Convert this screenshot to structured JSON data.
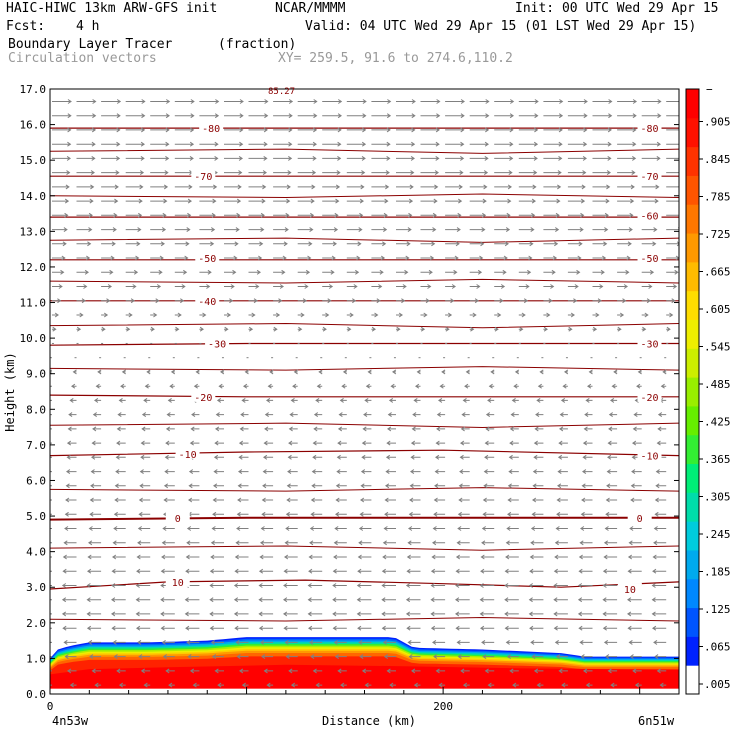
{
  "header": {
    "model": "HAIC-HIWC 13km ARW-GFS init",
    "org": "NCAR/MMMM",
    "init": "Init: 00 UTC Wed 29 Apr 15",
    "fcst_label": "Fcst:",
    "fcst_value": "4 h",
    "valid": "Valid: 04 UTC Wed 29 Apr 15 (01 LST Wed 29 Apr 15)",
    "field_name": "Boundary Layer Tracer",
    "field_units": "(fraction)",
    "vector_label": "Circulation vectors",
    "xy_label": "XY= 259.5, 91.6 to 274.6,110.2"
  },
  "chart_data": {
    "type": "heatmap",
    "ylabel": "Height (km)",
    "xlabel": "Distance (km)",
    "ylim": [
      0,
      17
    ],
    "xlim": [
      0,
      320
    ],
    "y_ticks": [
      "0.0",
      "1.0",
      "2.0",
      "3.0",
      "4.0",
      "5.0",
      "6.0",
      "7.0",
      "8.0",
      "9.0",
      "10.0",
      "11.0",
      "12.0",
      "13.0",
      "14.0",
      "15.0",
      "16.0",
      "17.0"
    ],
    "x_ticks": [
      {
        "value": 0,
        "label": "0"
      },
      {
        "value": 200,
        "label": "200"
      }
    ],
    "x_endpoint_left": "4n53w",
    "x_endpoint_right": "6n51w",
    "top_label": "85.27",
    "colorbar": {
      "top_label": "−",
      "labels": [
        ".005",
        ".065",
        ".125",
        ".185",
        ".245",
        ".305",
        ".365",
        ".425",
        ".485",
        ".545",
        ".605",
        ".665",
        ".725",
        ".785",
        ".845",
        ".905"
      ],
      "colors": [
        "#ffffff",
        "#0022ff",
        "#0055ff",
        "#0088ff",
        "#00aaee",
        "#00ccdd",
        "#00ddaa",
        "#00ee77",
        "#33ee33",
        "#66ee00",
        "#99ee00",
        "#ccee00",
        "#eeee00",
        "#ffdd00",
        "#ffbb00",
        "#ff9900",
        "#ff7700",
        "#ff5500",
        "#ff3300",
        "#ff1100",
        "#ff0000"
      ]
    },
    "tracer_top_km": [
      [
        0,
        1.0
      ],
      [
        4,
        1.25
      ],
      [
        10,
        1.35
      ],
      [
        20,
        1.45
      ],
      [
        50,
        1.45
      ],
      [
        80,
        1.5
      ],
      [
        100,
        1.6
      ],
      [
        140,
        1.6
      ],
      [
        175,
        1.6
      ],
      [
        185,
        1.3
      ],
      [
        220,
        1.25
      ],
      [
        260,
        1.15
      ],
      [
        272,
        1.05
      ],
      [
        320,
        1.05
      ]
    ],
    "red_top_km": [
      [
        0,
        0.55
      ],
      [
        20,
        0.7
      ],
      [
        60,
        0.75
      ],
      [
        120,
        0.82
      ],
      [
        180,
        0.78
      ],
      [
        240,
        0.72
      ],
      [
        320,
        0.68
      ]
    ],
    "temperature_contours": [
      {
        "label": "10",
        "labels_at": [
          [
            65,
            3.15
          ],
          [
            295,
            2.95
          ]
        ],
        "path": [
          [
            0,
            2.95
          ],
          [
            60,
            3.15
          ],
          [
            130,
            3.2
          ],
          [
            200,
            3.1
          ],
          [
            260,
            3.0
          ],
          [
            320,
            3.15
          ]
        ]
      },
      {
        "label": "0",
        "labels_at": [
          [
            65,
            4.95
          ],
          [
            300,
            4.95
          ]
        ],
        "path": [
          [
            0,
            4.9
          ],
          [
            100,
            4.95
          ],
          [
            200,
            4.95
          ],
          [
            320,
            4.95
          ]
        ]
      },
      {
        "label": "-10",
        "labels_at": [
          [
            70,
            6.75
          ],
          [
            305,
            6.7
          ]
        ],
        "path": [
          [
            0,
            6.7
          ],
          [
            100,
            6.8
          ],
          [
            200,
            6.85
          ],
          [
            320,
            6.7
          ]
        ]
      },
      {
        "label": "-20",
        "labels_at": [
          [
            78,
            8.35
          ],
          [
            305,
            8.35
          ]
        ],
        "path": [
          [
            0,
            8.4
          ],
          [
            100,
            8.35
          ],
          [
            200,
            8.35
          ],
          [
            320,
            8.35
          ]
        ]
      },
      {
        "label": "-30",
        "labels_at": [
          [
            85,
            9.85
          ],
          [
            305,
            9.85
          ]
        ],
        "path": [
          [
            0,
            9.8
          ],
          [
            100,
            9.85
          ],
          [
            200,
            9.85
          ],
          [
            320,
            9.85
          ]
        ]
      },
      {
        "label": "-40",
        "labels_at": [
          [
            80,
            11.05
          ]
        ],
        "path": [
          [
            0,
            11.05
          ],
          [
            320,
            11.05
          ]
        ]
      },
      {
        "label": "-50",
        "labels_at": [
          [
            80,
            12.25
          ],
          [
            305,
            12.25
          ]
        ],
        "path": [
          [
            0,
            12.2
          ],
          [
            320,
            12.2
          ]
        ]
      },
      {
        "label": "-60",
        "labels_at": [
          [
            305,
            13.45
          ]
        ],
        "path": [
          [
            0,
            13.4
          ],
          [
            320,
            13.4
          ]
        ]
      },
      {
        "label": "-70",
        "labels_at": [
          [
            78,
            14.55
          ],
          [
            305,
            14.55
          ]
        ],
        "path": [
          [
            0,
            14.55
          ],
          [
            320,
            14.55
          ]
        ]
      },
      {
        "label": "-80",
        "labels_at": [
          [
            82,
            15.9
          ],
          [
            305,
            15.9
          ]
        ],
        "path": [
          [
            0,
            15.9
          ],
          [
            320,
            15.9
          ]
        ]
      }
    ],
    "extra_contours_km": [
      2.1,
      4.1,
      5.75,
      7.55,
      9.15,
      10.35,
      11.6,
      12.75,
      14.0,
      15.25
    ],
    "wind_profile": [
      {
        "z_km": 0.2,
        "u": -1
      },
      {
        "z_km": 1.0,
        "u": -2
      },
      {
        "z_km": 2.0,
        "u": -2.5
      },
      {
        "z_km": 3.0,
        "u": -2.5
      },
      {
        "z_km": 4.0,
        "u": -2.3
      },
      {
        "z_km": 5.0,
        "u": -2.0
      },
      {
        "z_km": 6.0,
        "u": -1.8
      },
      {
        "z_km": 7.0,
        "u": -1.6
      },
      {
        "z_km": 8.0,
        "u": -1.3
      },
      {
        "z_km": 9.0,
        "u": -0.6
      },
      {
        "z_km": 10.0,
        "u": 0.4
      },
      {
        "z_km": 11.0,
        "u": 1.5
      },
      {
        "z_km": 12.0,
        "u": 2.2
      },
      {
        "z_km": 13.0,
        "u": 2.7
      },
      {
        "z_km": 14.0,
        "u": 3.0
      },
      {
        "z_km": 15.0,
        "u": 3.3
      },
      {
        "z_km": 16.0,
        "u": 3.4
      },
      {
        "z_km": 17.0,
        "u": 3.5
      }
    ],
    "colors": {
      "contour": "#8b0000",
      "vector": "#808080",
      "axis": "#000000"
    }
  }
}
